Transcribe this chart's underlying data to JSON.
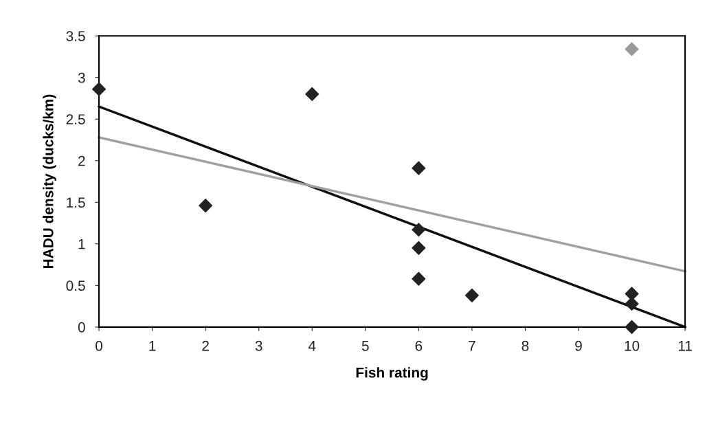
{
  "chart_data": {
    "type": "scatter",
    "xlabel": "Fish rating",
    "ylabel": "HADU density (ducks/km)",
    "grid": false,
    "legend": false,
    "xlim": [
      0,
      11
    ],
    "xticks": [
      0,
      1,
      2,
      3,
      4,
      5,
      6,
      7,
      8,
      9,
      10,
      11
    ],
    "ylim": [
      0,
      3.5
    ],
    "yticks": [
      0,
      0.5,
      1,
      1.5,
      2,
      2.5,
      3,
      3.5
    ],
    "series": [
      {
        "marker": "diamond",
        "color": "#222222",
        "x": [
          0,
          2,
          4,
          6,
          6,
          6,
          6,
          7,
          10,
          10,
          10
        ],
        "values": [
          2.86,
          1.46,
          2.8,
          1.91,
          1.17,
          0.95,
          0.58,
          0.38,
          0.4,
          0.28,
          0
        ]
      },
      {
        "marker": "diamond",
        "color": "#999999",
        "x": [
          10
        ],
        "values": [
          3.34
        ]
      },
      {
        "type": "line",
        "color": "#111111",
        "x": [
          0,
          11
        ],
        "values": [
          2.65,
          0
        ]
      },
      {
        "type": "line",
        "color": "#a0a0a0",
        "x": [
          0,
          11
        ],
        "values": [
          2.28,
          0.67
        ]
      }
    ]
  }
}
